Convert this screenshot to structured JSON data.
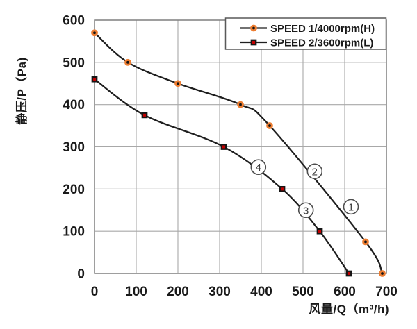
{
  "chart_data": {
    "type": "line",
    "title": "",
    "xlabel": "风量/Q（m³/h)",
    "ylabel": "静压/P（Pa)",
    "xlim": [
      0,
      700
    ],
    "ylim": [
      0,
      600
    ],
    "xticks": [
      0,
      100,
      200,
      300,
      400,
      500,
      600,
      700
    ],
    "yticks": [
      0,
      100,
      200,
      300,
      400,
      500,
      600
    ],
    "grid": true,
    "legend": {
      "position": "top-right"
    },
    "series": [
      {
        "name": "SPEED 1/4000rpm(H)",
        "marker": "circle",
        "marker_fill": "#151515",
        "marker_ring": "#ed7d31",
        "points": [
          [
            0,
            570
          ],
          [
            80,
            500
          ],
          [
            200,
            450
          ],
          [
            350,
            400
          ],
          [
            420,
            350
          ],
          [
            650,
            75
          ],
          [
            690,
            0
          ]
        ]
      },
      {
        "name": "SPEED 2/3600rpm(L)",
        "marker": "square",
        "marker_fill": "#c00000",
        "marker_ring": "#151515",
        "points": [
          [
            0,
            460
          ],
          [
            120,
            375
          ],
          [
            310,
            300
          ],
          [
            450,
            200
          ],
          [
            540,
            100
          ],
          [
            610,
            0
          ]
        ]
      }
    ],
    "annotations": [
      {
        "label": "1",
        "x": 615,
        "y": 158
      },
      {
        "label": "2",
        "x": 528,
        "y": 242
      },
      {
        "label": "3",
        "x": 507,
        "y": 150
      },
      {
        "label": "4",
        "x": 393,
        "y": 252
      }
    ],
    "colors": {
      "line": "#1f1f1f",
      "grid": "#a8a8a8",
      "plot_border": "#7f7f7f",
      "tick_text": "#1a1a1a",
      "legend_border": "#595959",
      "legend_bg": "#ffffff",
      "annotation_stroke": "#4d4d4d",
      "annotation_text": "#404040"
    }
  }
}
